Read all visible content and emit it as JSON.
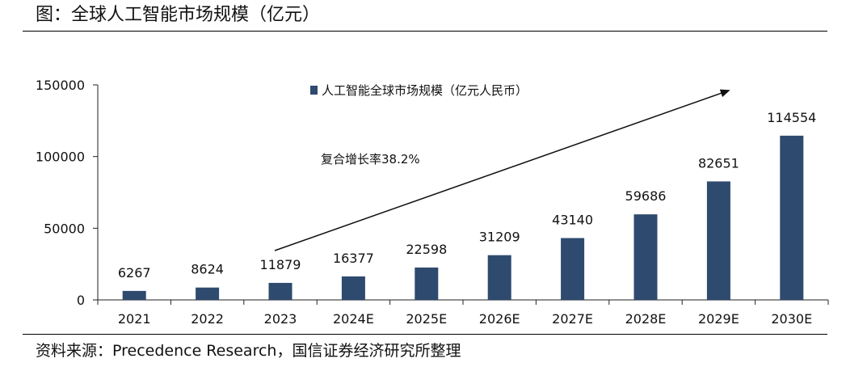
{
  "figure": {
    "title": "图：全球人工智能市场规模（亿元）",
    "source": "资料来源：Precedence Research，国信证券经济研究所整理"
  },
  "chart_data": {
    "type": "bar",
    "categories": [
      "2021",
      "2022",
      "2023",
      "2024E",
      "2025E",
      "2026E",
      "2027E",
      "2028E",
      "2029E",
      "2030E"
    ],
    "series": [
      {
        "name": "人工智能全球市场规模（亿元人民币）",
        "values": [
          6267,
          8624,
          11879,
          16377,
          22598,
          31209,
          43140,
          59686,
          82651,
          114554
        ],
        "color": "#2e4a6e"
      }
    ],
    "data_labels": [
      "6267",
      "8624",
      "11879",
      "16377",
      "22598",
      "31209",
      "43140",
      "59686",
      "82651",
      "114554"
    ],
    "ylim": [
      0,
      150000
    ],
    "yticks": [
      0,
      50000,
      100000,
      150000
    ],
    "ytick_labels": [
      "0",
      "50000",
      "100000",
      "150000"
    ],
    "xlabel": "",
    "ylabel": "",
    "grid": false,
    "legend_position": "top-center",
    "annotation": {
      "text": "复合增长率38.2%",
      "arrow_from_category": "2023",
      "arrow_to_category": "2030E"
    }
  }
}
